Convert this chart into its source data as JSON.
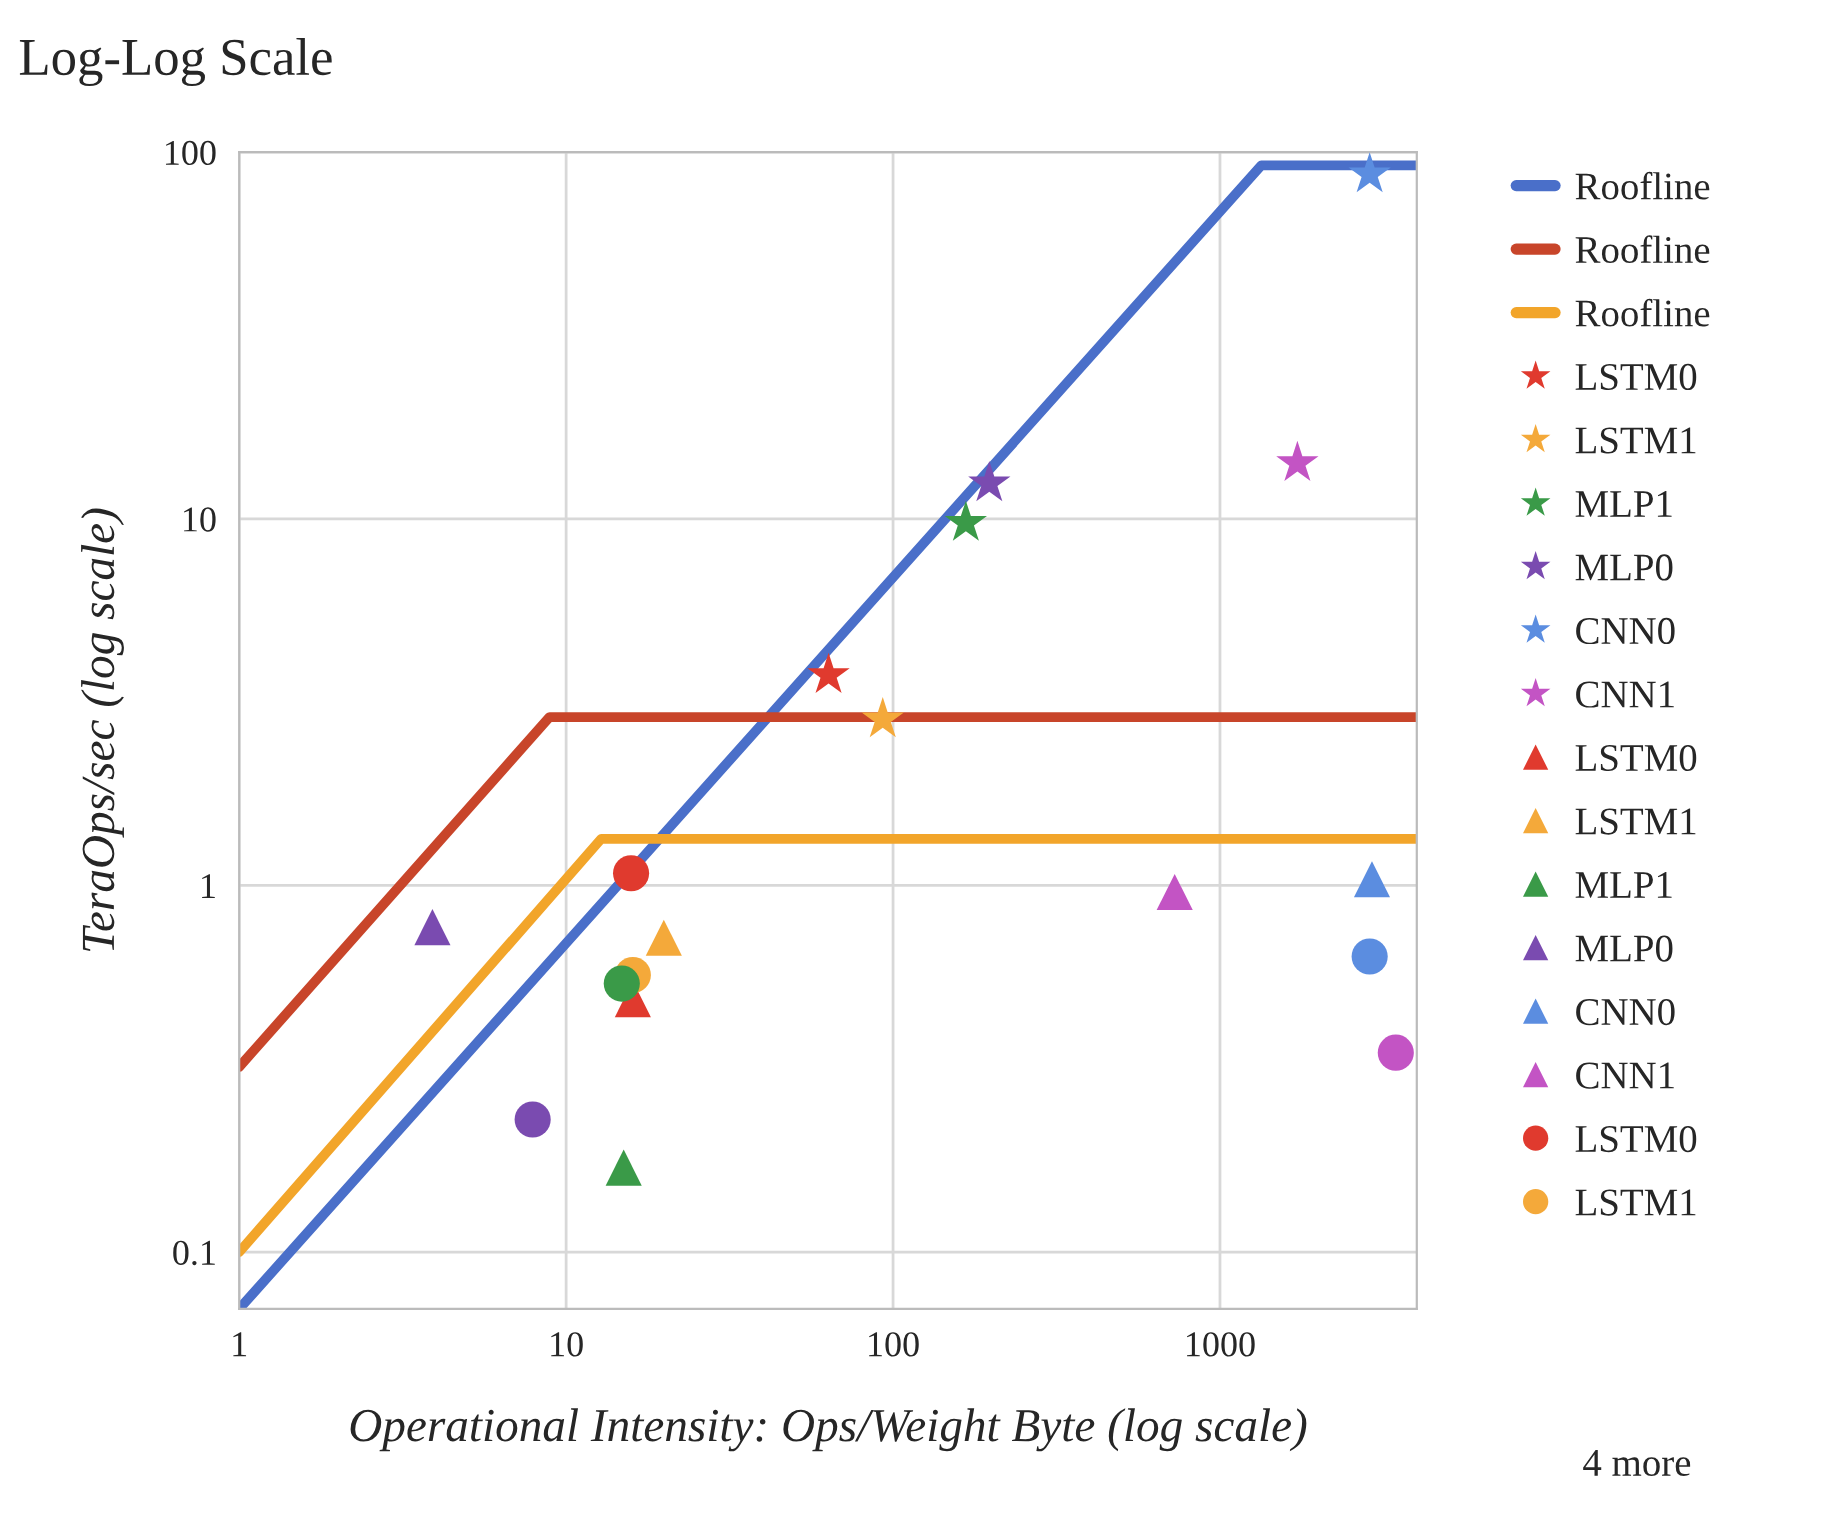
{
  "chart_data": {
    "type": "scatter",
    "title": "Log-Log Scale",
    "xlabel": "Operational Intensity: Ops/Weight Byte (log scale)",
    "ylabel": "TeraOps/sec (log scale)",
    "log": "xy",
    "grid": true,
    "legend": "right",
    "xlim": [
      1,
      4000
    ],
    "ylim": [
      0.07,
      100
    ],
    "xticks": [
      1,
      10,
      100,
      1000
    ],
    "yticks": [
      0.1,
      1,
      10,
      100
    ],
    "annotations": [
      "4 more"
    ],
    "series": [
      {
        "name": "Roofline",
        "type": "line",
        "color": "#4a6fc9",
        "marker": "none",
        "x": [
          1,
          1337,
          4000
        ],
        "values": [
          0.07,
          92,
          92
        ]
      },
      {
        "name": "Roofline",
        "type": "line",
        "color": "#c8452a",
        "marker": "none",
        "x": [
          1,
          8.9,
          4000
        ],
        "values": [
          0.32,
          2.88,
          2.88
        ]
      },
      {
        "name": "Roofline",
        "type": "line",
        "color": "#f2a52a",
        "marker": "none",
        "x": [
          1,
          12.8,
          4000
        ],
        "values": [
          0.1,
          1.34,
          1.34
        ]
      },
      {
        "name": "LSTM0",
        "color": "#e03a2e",
        "marker": "star",
        "x": [
          63.5
        ],
        "values": [
          3.75
        ]
      },
      {
        "name": "LSTM1",
        "color": "#f4a93a",
        "marker": "star",
        "x": [
          93
        ],
        "values": [
          2.84
        ]
      },
      {
        "name": "MLP1",
        "color": "#3a9a48",
        "marker": "star",
        "x": [
          167
        ],
        "values": [
          9.75
        ]
      },
      {
        "name": "MLP0",
        "color": "#7a4bb0",
        "marker": "star",
        "x": [
          197
        ],
        "values": [
          12.5
        ]
      },
      {
        "name": "CNN0",
        "color": "#5b8de0",
        "marker": "star",
        "x": [
          2870
        ],
        "values": [
          87
        ]
      },
      {
        "name": "CNN1",
        "color": "#c354c4",
        "marker": "star",
        "x": [
          1725
        ],
        "values": [
          14.2
        ]
      },
      {
        "name": "LSTM0",
        "color": "#e03a2e",
        "marker": "triangle",
        "x": [
          16
        ],
        "values": [
          0.49
        ]
      },
      {
        "name": "LSTM1",
        "color": "#f4a93a",
        "marker": "triangle",
        "x": [
          19.9
        ],
        "values": [
          0.72
        ]
      },
      {
        "name": "MLP1",
        "color": "#3a9a48",
        "marker": "triangle",
        "x": [
          15
        ],
        "values": [
          0.17
        ]
      },
      {
        "name": "MLP0",
        "color": "#7a4bb0",
        "marker": "triangle",
        "x": [
          3.9
        ],
        "values": [
          0.77
        ]
      },
      {
        "name": "CNN0",
        "color": "#5b8de0",
        "marker": "triangle",
        "x": [
          2917
        ],
        "values": [
          1.04
        ]
      },
      {
        "name": "CNN1",
        "color": "#c354c4",
        "marker": "triangle",
        "x": [
          727
        ],
        "values": [
          0.96
        ]
      },
      {
        "name": "LSTM0",
        "color": "#e03a2e",
        "marker": "circle",
        "x": [
          15.8
        ],
        "values": [
          1.08
        ]
      },
      {
        "name": "LSTM1",
        "color": "#f4a93a",
        "marker": "circle",
        "x": [
          16
        ],
        "values": [
          0.57
        ]
      },
      {
        "color": "#3a9a48",
        "marker": "circle",
        "x": [
          14.8
        ],
        "values": [
          0.54
        ]
      },
      {
        "color": "#7a4bb0",
        "marker": "circle",
        "x": [
          7.9
        ],
        "values": [
          0.23
        ]
      },
      {
        "color": "#5b8de0",
        "marker": "circle",
        "x": [
          2870
        ],
        "values": [
          0.64
        ]
      },
      {
        "color": "#c354c4",
        "marker": "circle",
        "x": [
          3450
        ],
        "values": [
          0.35
        ]
      }
    ]
  }
}
